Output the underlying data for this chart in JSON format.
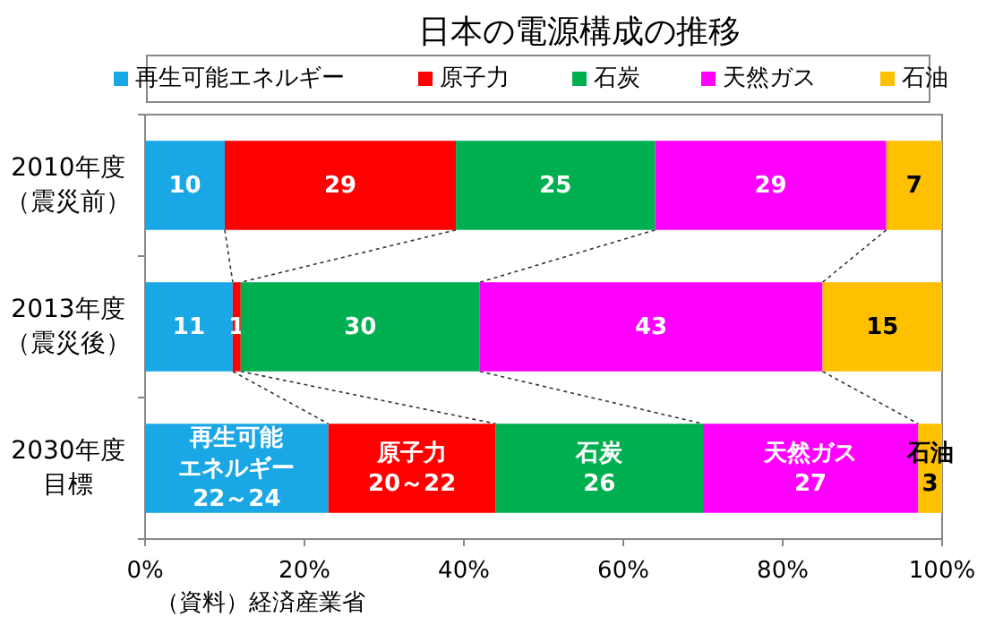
{
  "chart_data": {
    "type": "bar",
    "orientation": "horizontal",
    "stacked": true,
    "title": "日本の電源構成の推移",
    "categories": [
      "2010年度（震災前）",
      "2013年度（震災後）",
      "2030年度目標"
    ],
    "series": [
      {
        "name": "再生可能エネルギー",
        "color": "#1aa7e6",
        "values": [
          10,
          11,
          23
        ],
        "value_labels": [
          "10",
          "11",
          "再生可能エネルギー22～24"
        ]
      },
      {
        "name": "原子力",
        "color": "#ff0000",
        "values": [
          29,
          1,
          21
        ],
        "value_labels": [
          "29",
          "1",
          "原子力20～22"
        ]
      },
      {
        "name": "石炭",
        "color": "#00b050",
        "values": [
          25,
          30,
          26
        ],
        "value_labels": [
          "25",
          "30",
          "石炭26"
        ]
      },
      {
        "name": "天然ガス",
        "color": "#ff00ff",
        "values": [
          29,
          43,
          27
        ],
        "value_labels": [
          "29",
          "43",
          "天然ガス27"
        ]
      },
      {
        "name": "石油",
        "color": "#ffc000",
        "values": [
          7,
          15,
          3
        ],
        "value_labels": [
          "7",
          "15",
          "石油3"
        ]
      }
    ],
    "xlim": [
      0,
      100
    ],
    "xticks": [
      {
        "value": 0,
        "label": "0%"
      },
      {
        "value": 20,
        "label": "20%"
      },
      {
        "value": 40,
        "label": "40%"
      },
      {
        "value": 60,
        "label": "60%"
      },
      {
        "value": 80,
        "label": "80%"
      },
      {
        "value": 100,
        "label": "100%"
      }
    ],
    "grid": false,
    "legend": "top",
    "annotations": [
      "（資料）経済産業省"
    ]
  }
}
